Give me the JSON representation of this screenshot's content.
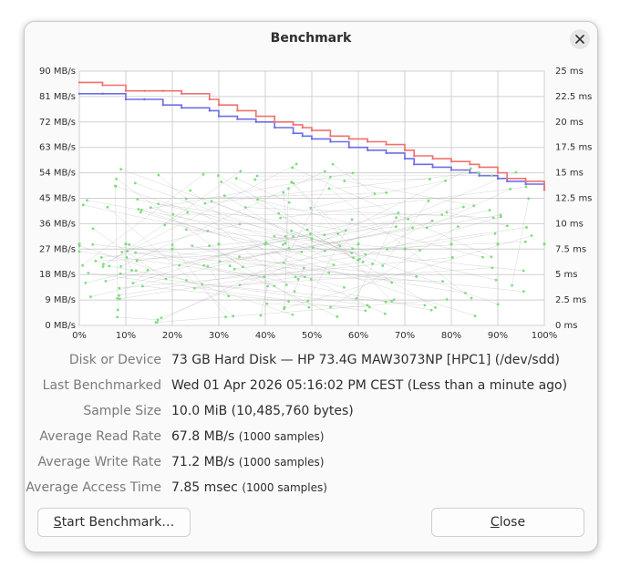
{
  "window": {
    "title": "Benchmark"
  },
  "chart_data": {
    "type": "line",
    "title": "",
    "xlabel": "",
    "ylabel": "",
    "x_ticks": [
      "0%",
      "10%",
      "20%",
      "30%",
      "40%",
      "50%",
      "60%",
      "70%",
      "80%",
      "90%",
      "100%"
    ],
    "y_left_ticks": [
      "90 MB/s",
      "81 MB/s",
      "72 MB/s",
      "63 MB/s",
      "54 MB/s",
      "45 MB/s",
      "36 MB/s",
      "27 MB/s",
      "18 MB/s",
      "9 MB/s",
      "0 MB/s"
    ],
    "y_right_ticks": [
      "25 ms",
      "22.5 ms",
      "20 ms",
      "17.5 ms",
      "15 ms",
      "12.5 ms",
      "10 ms",
      "7.5 ms",
      "5 ms",
      "2.5 ms",
      "0 ms"
    ],
    "ylim_left": [
      0,
      90
    ],
    "ylim_right": [
      0,
      25
    ],
    "xlim": [
      0,
      100
    ],
    "grid": true,
    "colors": {
      "read": "#6d6de6",
      "write": "#f07070",
      "access": "#7ddd7d",
      "grid": "#d0d0d0"
    },
    "series": [
      {
        "name": "",
        "axis": "left",
        "color": "#6d6de6",
        "x": [
          0,
          5,
          10,
          14,
          18,
          22,
          28,
          30,
          34,
          38,
          42,
          46,
          48,
          50,
          54,
          58,
          62,
          66,
          70,
          72,
          76,
          80,
          84,
          86,
          90,
          92,
          96,
          100
        ],
        "values": [
          82,
          82,
          80,
          80,
          78,
          77,
          76,
          74,
          73,
          72,
          70,
          68,
          67,
          66,
          65,
          63,
          62,
          61,
          59,
          57,
          56,
          55,
          54,
          53,
          52,
          51,
          50,
          48
        ]
      },
      {
        "name": "",
        "axis": "left",
        "color": "#f07070",
        "x": [
          0,
          5,
          10,
          14,
          18,
          22,
          28,
          30,
          34,
          38,
          42,
          46,
          48,
          50,
          54,
          58,
          62,
          66,
          70,
          72,
          76,
          80,
          84,
          86,
          90,
          92,
          96,
          100
        ],
        "values": [
          86,
          85,
          83,
          83,
          83,
          82,
          80,
          78,
          76,
          74,
          72,
          71,
          70,
          69,
          67,
          66,
          65,
          64,
          62,
          60,
          59,
          58,
          57,
          56,
          54,
          52,
          51,
          48
        ]
      },
      {
        "name": "",
        "axis": "right",
        "type": "scatter",
        "color": "#7ddd7d",
        "x": [
          0,
          10,
          20,
          30,
          40,
          50,
          60,
          70,
          80,
          90,
          100
        ],
        "values": [
          8,
          8,
          7.5,
          8,
          8,
          8.5,
          8,
          7.5,
          8,
          8,
          8
        ]
      }
    ]
  },
  "props": [
    {
      "label": "Disk or Device",
      "value": "73 GB Hard Disk — HP 73.4G MAW3073NP [HPC1] (/dev/sdd)",
      "note": ""
    },
    {
      "label": "Last Benchmarked",
      "value": "Wed 01 Apr 2026 05:16:02 PM CEST (Less than a minute ago)",
      "note": ""
    },
    {
      "label": "Sample Size",
      "value": "10.0 MiB (10,485,760 bytes)",
      "note": ""
    },
    {
      "label": "Average Read Rate",
      "value": "67.8 MB/s",
      "note": "(1000 samples)"
    },
    {
      "label": "Average Write Rate",
      "value": "71.2 MB/s",
      "note": "(1000 samples)"
    },
    {
      "label": "Average Access Time",
      "value": "7.85 msec",
      "note": "(1000 samples)"
    }
  ],
  "buttons": {
    "start_prefix": "S",
    "start_rest": "tart Benchmark…",
    "close_prefix": "C",
    "close_rest": "lose"
  }
}
